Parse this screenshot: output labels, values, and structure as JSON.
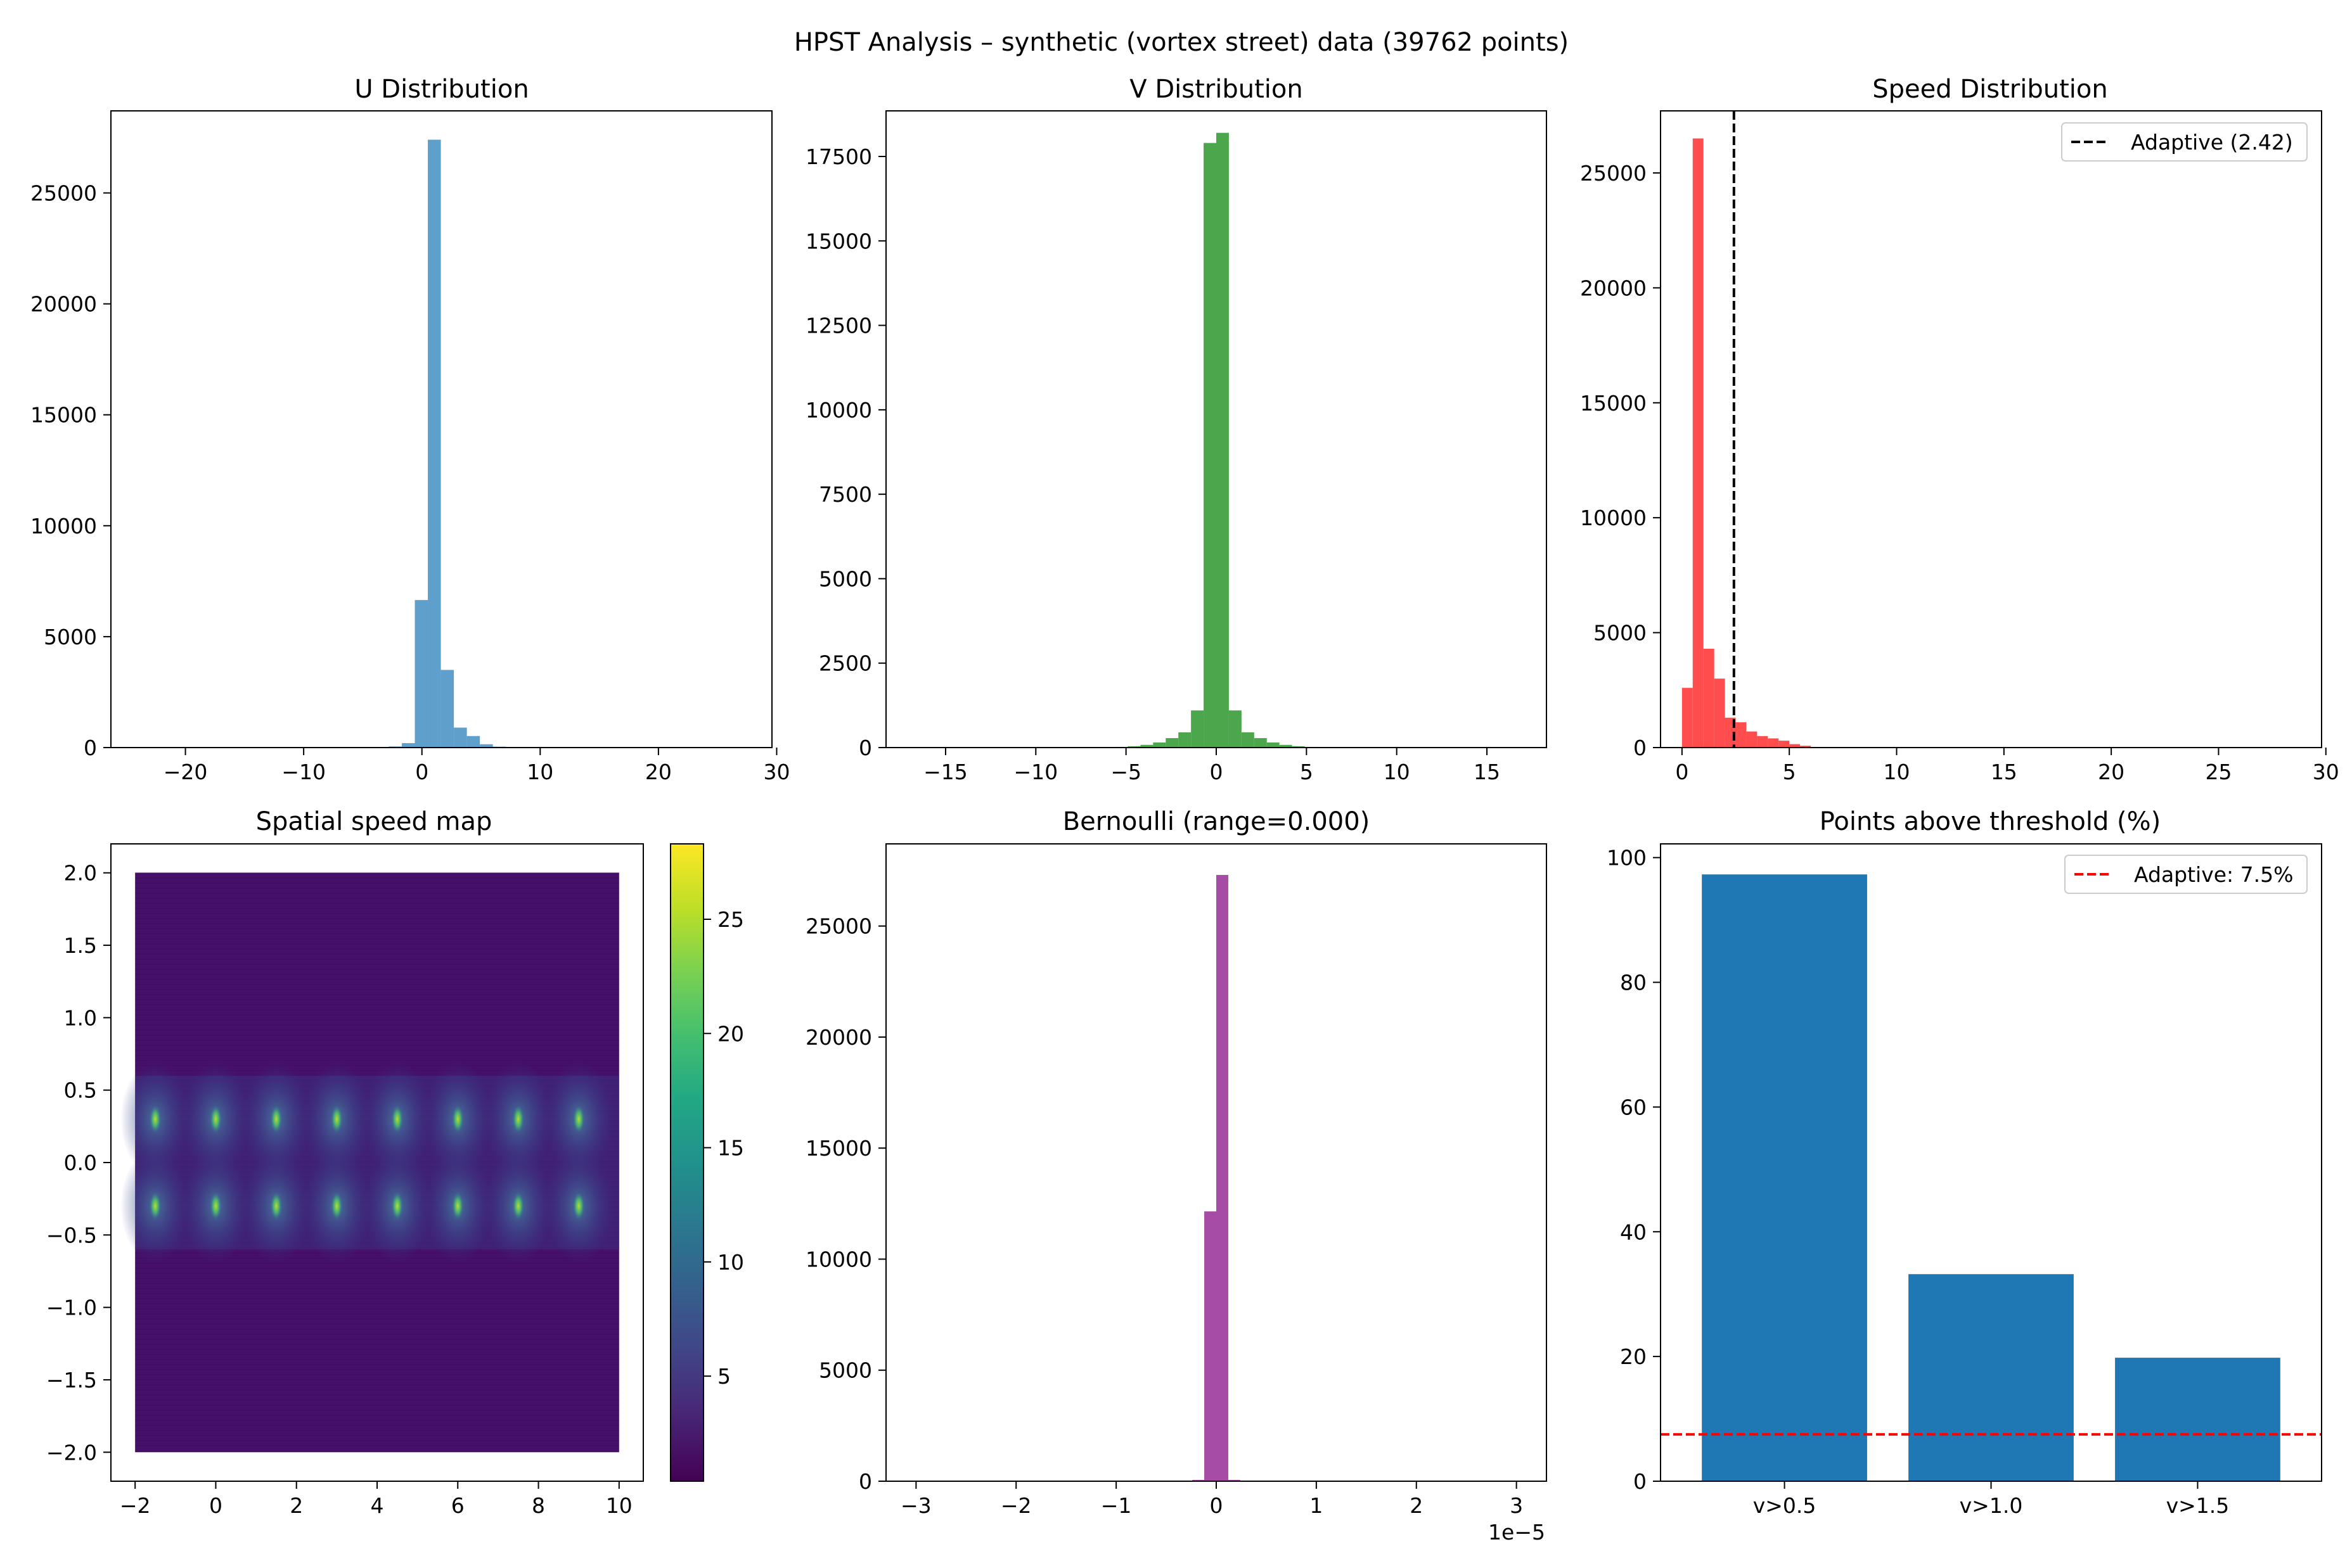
{
  "figure": {
    "suptitle": "HPST Analysis – synthetic (vortex street) data (39762 points)"
  },
  "chart_data": [
    {
      "id": "u_hist",
      "type": "bar",
      "title": "U Distribution",
      "color": "#5e9fcc",
      "xlim": [
        -26.3,
        29.6
      ],
      "ylim": [
        0,
        28700
      ],
      "xticks": [
        -20,
        -10,
        0,
        10,
        20,
        30
      ],
      "yticks": [
        0,
        5000,
        10000,
        15000,
        20000,
        25000
      ],
      "bins": [
        {
          "x0": -2.8,
          "x1": -1.7,
          "count": 50
        },
        {
          "x0": -1.7,
          "x1": -0.6,
          "count": 200
        },
        {
          "x0": -0.6,
          "x1": 0.5,
          "count": 6650
        },
        {
          "x0": 0.5,
          "x1": 1.6,
          "count": 27400
        },
        {
          "x0": 1.6,
          "x1": 2.7,
          "count": 3500
        },
        {
          "x0": 2.7,
          "x1": 3.8,
          "count": 900
        },
        {
          "x0": 3.8,
          "x1": 4.9,
          "count": 520
        },
        {
          "x0": 4.9,
          "x1": 6.0,
          "count": 150
        },
        {
          "x0": 6.0,
          "x1": 7.1,
          "count": 40
        }
      ]
    },
    {
      "id": "v_hist",
      "type": "bar",
      "title": "V Distribution",
      "color": "#4ca64c",
      "xlim": [
        -18.3,
        18.3
      ],
      "ylim": [
        0,
        18850
      ],
      "xticks": [
        -15,
        -10,
        -5,
        0,
        5,
        10,
        15
      ],
      "yticks": [
        0,
        2500,
        5000,
        7500,
        10000,
        12500,
        15000,
        17500
      ],
      "bins": [
        {
          "x0": -5.6,
          "x1": -4.9,
          "count": 20
        },
        {
          "x0": -4.9,
          "x1": -4.2,
          "count": 40
        },
        {
          "x0": -4.2,
          "x1": -3.5,
          "count": 80
        },
        {
          "x0": -3.5,
          "x1": -2.8,
          "count": 150
        },
        {
          "x0": -2.8,
          "x1": -2.1,
          "count": 280
        },
        {
          "x0": -2.1,
          "x1": -1.4,
          "count": 450
        },
        {
          "x0": -1.4,
          "x1": -0.7,
          "count": 1100
        },
        {
          "x0": -0.7,
          "x1": 0.0,
          "count": 17900
        },
        {
          "x0": 0.0,
          "x1": 0.7,
          "count": 18200
        },
        {
          "x0": 0.7,
          "x1": 1.4,
          "count": 1100
        },
        {
          "x0": 1.4,
          "x1": 2.1,
          "count": 450
        },
        {
          "x0": 2.1,
          "x1": 2.8,
          "count": 280
        },
        {
          "x0": 2.8,
          "x1": 3.5,
          "count": 150
        },
        {
          "x0": 3.5,
          "x1": 4.2,
          "count": 80
        },
        {
          "x0": 4.2,
          "x1": 4.9,
          "count": 40
        },
        {
          "x0": 4.9,
          "x1": 5.6,
          "count": 20
        }
      ]
    },
    {
      "id": "speed_hist",
      "type": "bar",
      "title": "Speed Distribution",
      "color": "#ff4d4d",
      "xlim": [
        -1.0,
        29.8
      ],
      "ylim": [
        0,
        27700
      ],
      "xticks": [
        0,
        5,
        10,
        15,
        20,
        25,
        30
      ],
      "yticks": [
        0,
        5000,
        10000,
        15000,
        20000,
        25000
      ],
      "bins": [
        {
          "x0": 0.0,
          "x1": 0.5,
          "count": 2600
        },
        {
          "x0": 0.5,
          "x1": 1.0,
          "count": 26500
        },
        {
          "x0": 1.0,
          "x1": 1.5,
          "count": 4300
        },
        {
          "x0": 1.5,
          "x1": 2.0,
          "count": 3000
        },
        {
          "x0": 2.0,
          "x1": 2.5,
          "count": 1300
        },
        {
          "x0": 2.5,
          "x1": 3.0,
          "count": 1100
        },
        {
          "x0": 3.0,
          "x1": 3.5,
          "count": 700
        },
        {
          "x0": 3.5,
          "x1": 4.0,
          "count": 500
        },
        {
          "x0": 4.0,
          "x1": 4.5,
          "count": 400
        },
        {
          "x0": 4.5,
          "x1": 5.0,
          "count": 300
        },
        {
          "x0": 5.0,
          "x1": 5.5,
          "count": 150
        },
        {
          "x0": 5.5,
          "x1": 6.0,
          "count": 80
        }
      ],
      "vline": {
        "x": 2.42,
        "color": "#000000",
        "style": "dashed"
      },
      "legend": {
        "label": "Adaptive (2.42)",
        "placement": "upper right"
      }
    },
    {
      "id": "spatial_map",
      "type": "heatmap",
      "title": "Spatial speed map",
      "cmap": "viridis",
      "xlim": [
        -2.6,
        10.6
      ],
      "ylim": [
        -2.2,
        2.2
      ],
      "xticks": [
        -2,
        0,
        2,
        4,
        6,
        8,
        10
      ],
      "yticks": [
        -2.0,
        -1.5,
        -1.0,
        -0.5,
        0.0,
        0.5,
        1.0,
        1.5,
        2.0
      ],
      "extent": {
        "x": [
          -2,
          10
        ],
        "y": [
          -2,
          2
        ]
      },
      "background_speed": 1.0,
      "vortex_x": [
        -1.5,
        0,
        1.5,
        3,
        4.5,
        6,
        7.5,
        9
      ],
      "vortex_y": [
        0.3,
        -0.3
      ],
      "colorbar": {
        "range": [
          0.4,
          28.3
        ],
        "ticks": [
          5,
          10,
          15,
          20,
          25
        ]
      }
    },
    {
      "id": "bernoulli_hist",
      "type": "bar",
      "title": "Bernoulli (range=0.000)",
      "color": "#a64ca6",
      "xlim": [
        -3.3,
        3.3
      ],
      "ylim": [
        0,
        28700
      ],
      "xticks": [
        -3,
        -2,
        -1,
        0,
        1,
        2,
        3
      ],
      "yticks": [
        0,
        5000,
        10000,
        15000,
        20000,
        25000
      ],
      "offset_text": "1e−5",
      "bins": [
        {
          "x0": -0.24,
          "x1": -0.12,
          "count": 60
        },
        {
          "x0": -0.12,
          "x1": 0.0,
          "count": 12150
        },
        {
          "x0": 0.0,
          "x1": 0.12,
          "count": 27300
        },
        {
          "x0": 0.12,
          "x1": 0.24,
          "count": 60
        }
      ]
    },
    {
      "id": "threshold_bars",
      "type": "bar",
      "title": "Points above threshold (%)",
      "color": "#1f77b4",
      "categories": [
        "v>0.5",
        "v>1.0",
        "v>1.5"
      ],
      "values": [
        97.3,
        33.2,
        19.8
      ],
      "xlim": [
        -0.6,
        2.6
      ],
      "ylim": [
        0,
        102.2
      ],
      "yticks": [
        0,
        20,
        40,
        60,
        80,
        100
      ],
      "hline": {
        "y": 7.5,
        "color": "#ff0000",
        "style": "dashed"
      },
      "legend": {
        "label": "Adaptive: 7.5%",
        "placement": "upper right"
      }
    }
  ]
}
